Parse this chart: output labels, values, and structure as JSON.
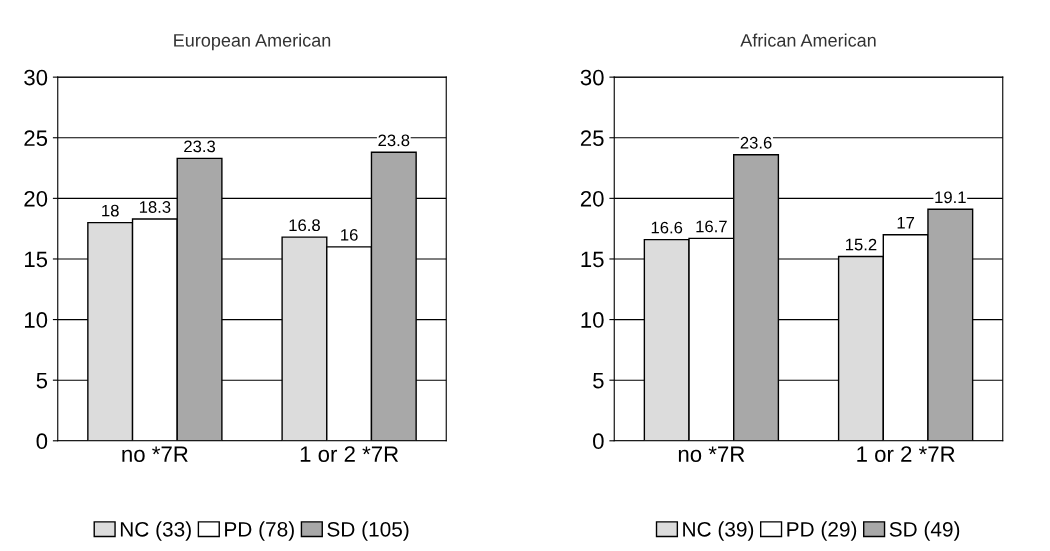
{
  "chart_data": [
    {
      "type": "bar",
      "title": "European American",
      "categories": [
        "no *7R",
        "1 or 2 *7R"
      ],
      "series": [
        {
          "name": "NC (33)",
          "color": "#dcdcdc",
          "values": [
            18,
            16.8
          ]
        },
        {
          "name": "PD (78)",
          "color": "#ffffff",
          "values": [
            18.3,
            16
          ]
        },
        {
          "name": "SD (105)",
          "color": "#a8a8a8",
          "values": [
            23.3,
            23.8
          ]
        }
      ],
      "ylim": [
        0,
        30
      ],
      "yticks": [
        0,
        5,
        10,
        15,
        20,
        25,
        30
      ],
      "grid": "y",
      "legend": "bottom",
      "data_labels": true
    },
    {
      "type": "bar",
      "title": "African American",
      "categories": [
        "no *7R",
        "1 or 2 *7R"
      ],
      "series": [
        {
          "name": "NC (39)",
          "color": "#dcdcdc",
          "values": [
            16.6,
            15.2
          ]
        },
        {
          "name": "PD (29)",
          "color": "#ffffff",
          "values": [
            16.7,
            17
          ]
        },
        {
          "name": "SD (49)",
          "color": "#a8a8a8",
          "values": [
            23.6,
            19.1
          ]
        }
      ],
      "ylim": [
        0,
        30
      ],
      "yticks": [
        0,
        5,
        10,
        15,
        20,
        25,
        30
      ],
      "grid": "y",
      "legend": "bottom",
      "data_labels": true
    }
  ]
}
